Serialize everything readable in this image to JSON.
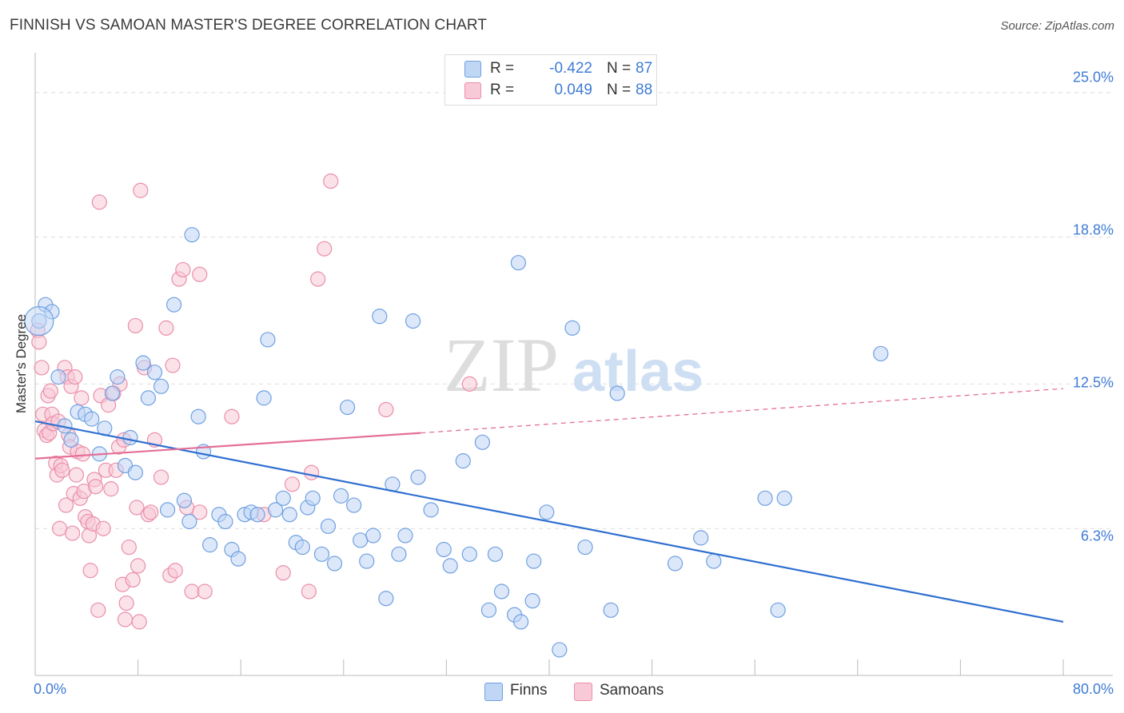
{
  "title": "FINNISH VS SAMOAN MASTER'S DEGREE CORRELATION CHART",
  "source": "Source: ZipAtlas.com",
  "watermark": {
    "zip": "ZIP",
    "atlas": "atlas"
  },
  "colors": {
    "finns_fill": "#c0d6f5",
    "finns_stroke": "#6fa0e0",
    "finns_line": "#2f6fd1",
    "samoans_fill": "#f8c9d6",
    "samoans_stroke": "#ea8fab",
    "samoans_line": "#e46f97",
    "tick_text": "#3e7bd6",
    "grid": "#dddddd"
  },
  "legend": {
    "rows": [
      {
        "r_label": "R =",
        "r_value": "-0.422",
        "n_label": "N =",
        "n_value": "87"
      },
      {
        "r_label": "R =",
        "r_value": "0.049",
        "n_label": "N =",
        "n_value": "88"
      }
    ]
  },
  "bottom_legend": {
    "finns": "Finns",
    "samoans": "Samoans"
  },
  "chart_data": {
    "type": "scatter",
    "title": "FINNISH VS SAMOAN MASTER'S DEGREE CORRELATION CHART",
    "xlabel": "",
    "ylabel": "Master's Degree",
    "xlim": [
      0,
      80
    ],
    "ylim": [
      0,
      26.5
    ],
    "x_tick_labels": [
      "0.0%",
      "80.0%"
    ],
    "y_ticks": [
      6.3,
      12.5,
      18.8,
      25.0
    ],
    "y_tick_labels": [
      "6.3%",
      "12.5%",
      "18.8%",
      "25.0%"
    ],
    "grid": "horizontal dashed",
    "legend_position": "top-center",
    "series": [
      {
        "name": "Finns",
        "r": -0.422,
        "n": 87,
        "trend": {
          "x": [
            0,
            80
          ],
          "y": [
            10.9,
            2.3
          ]
        },
        "points": [
          [
            0.3,
            15.2
          ],
          [
            0.8,
            15.9
          ],
          [
            1.3,
            15.6
          ],
          [
            1.8,
            12.8
          ],
          [
            2.3,
            10.7
          ],
          [
            2.8,
            10.1
          ],
          [
            3.3,
            11.3
          ],
          [
            3.9,
            11.2
          ],
          [
            4.4,
            11.0
          ],
          [
            5.0,
            9.5
          ],
          [
            5.4,
            10.6
          ],
          [
            6.0,
            12.1
          ],
          [
            6.4,
            12.8
          ],
          [
            7.0,
            9.0
          ],
          [
            7.4,
            10.2
          ],
          [
            7.8,
            8.7
          ],
          [
            8.4,
            13.4
          ],
          [
            8.8,
            11.9
          ],
          [
            9.3,
            13.0
          ],
          [
            9.8,
            12.4
          ],
          [
            10.3,
            7.1
          ],
          [
            10.8,
            15.9
          ],
          [
            11.6,
            7.5
          ],
          [
            12.0,
            6.6
          ],
          [
            12.2,
            18.9
          ],
          [
            12.7,
            11.1
          ],
          [
            13.1,
            9.6
          ],
          [
            13.6,
            5.6
          ],
          [
            14.3,
            6.9
          ],
          [
            14.8,
            6.6
          ],
          [
            15.3,
            5.4
          ],
          [
            15.8,
            5.0
          ],
          [
            16.3,
            6.9
          ],
          [
            16.8,
            7.0
          ],
          [
            17.3,
            6.9
          ],
          [
            17.8,
            11.9
          ],
          [
            18.1,
            14.4
          ],
          [
            18.7,
            7.1
          ],
          [
            19.3,
            7.6
          ],
          [
            19.8,
            6.9
          ],
          [
            20.3,
            5.7
          ],
          [
            20.8,
            5.5
          ],
          [
            21.2,
            7.2
          ],
          [
            21.6,
            7.6
          ],
          [
            22.3,
            5.2
          ],
          [
            22.8,
            6.4
          ],
          [
            23.3,
            4.8
          ],
          [
            23.8,
            7.7
          ],
          [
            24.3,
            11.5
          ],
          [
            24.8,
            7.3
          ],
          [
            25.3,
            5.8
          ],
          [
            25.8,
            4.9
          ],
          [
            26.3,
            6.0
          ],
          [
            26.8,
            15.4
          ],
          [
            27.3,
            3.3
          ],
          [
            27.8,
            8.2
          ],
          [
            28.3,
            5.2
          ],
          [
            28.8,
            6.0
          ],
          [
            29.4,
            15.2
          ],
          [
            29.8,
            8.5
          ],
          [
            30.8,
            7.1
          ],
          [
            31.8,
            5.4
          ],
          [
            32.3,
            4.7
          ],
          [
            33.3,
            9.2
          ],
          [
            33.8,
            5.2
          ],
          [
            34.8,
            10.0
          ],
          [
            35.3,
            2.8
          ],
          [
            35.8,
            5.2
          ],
          [
            36.3,
            3.6
          ],
          [
            37.3,
            2.6
          ],
          [
            37.6,
            17.7
          ],
          [
            37.8,
            2.3
          ],
          [
            38.7,
            3.2
          ],
          [
            38.8,
            4.9
          ],
          [
            39.8,
            7.0
          ],
          [
            40.8,
            1.1
          ],
          [
            41.8,
            14.9
          ],
          [
            42.8,
            5.5
          ],
          [
            44.8,
            2.8
          ],
          [
            45.3,
            12.1
          ],
          [
            49.8,
            4.8
          ],
          [
            51.8,
            5.9
          ],
          [
            52.8,
            4.9
          ],
          [
            56.8,
            7.6
          ],
          [
            57.8,
            2.8
          ],
          [
            58.3,
            7.6
          ],
          [
            65.8,
            13.8
          ]
        ]
      },
      {
        "name": "Samoans",
        "r": 0.049,
        "n": 88,
        "trend": {
          "x": [
            0,
            30
          ],
          "y": [
            9.3,
            10.4
          ],
          "dashed_extension": {
            "x": [
              30,
              80
            ],
            "y": [
              10.4,
              12.3
            ]
          }
        },
        "points": [
          [
            0.2,
            14.8
          ],
          [
            0.3,
            14.3
          ],
          [
            0.5,
            13.2
          ],
          [
            0.6,
            11.2
          ],
          [
            0.7,
            10.5
          ],
          [
            0.9,
            10.3
          ],
          [
            1.0,
            12.0
          ],
          [
            1.1,
            10.4
          ],
          [
            1.2,
            12.2
          ],
          [
            1.3,
            11.2
          ],
          [
            1.4,
            10.8
          ],
          [
            1.6,
            9.1
          ],
          [
            1.7,
            8.6
          ],
          [
            1.8,
            10.9
          ],
          [
            1.9,
            6.3
          ],
          [
            2.0,
            9.0
          ],
          [
            2.1,
            8.8
          ],
          [
            2.3,
            13.2
          ],
          [
            2.4,
            7.3
          ],
          [
            2.5,
            12.8
          ],
          [
            2.6,
            10.3
          ],
          [
            2.7,
            9.8
          ],
          [
            2.8,
            12.4
          ],
          [
            2.9,
            6.1
          ],
          [
            3.0,
            7.8
          ],
          [
            3.1,
            12.8
          ],
          [
            3.2,
            8.6
          ],
          [
            3.3,
            9.6
          ],
          [
            3.5,
            7.6
          ],
          [
            3.6,
            11.9
          ],
          [
            3.7,
            9.5
          ],
          [
            3.8,
            7.9
          ],
          [
            3.9,
            6.8
          ],
          [
            4.1,
            6.6
          ],
          [
            4.2,
            6.0
          ],
          [
            4.3,
            4.5
          ],
          [
            4.5,
            6.5
          ],
          [
            4.6,
            8.4
          ],
          [
            4.7,
            8.1
          ],
          [
            4.9,
            2.8
          ],
          [
            5.0,
            20.3
          ],
          [
            5.1,
            12.0
          ],
          [
            5.3,
            6.3
          ],
          [
            5.5,
            8.8
          ],
          [
            5.7,
            11.6
          ],
          [
            5.9,
            8.0
          ],
          [
            6.1,
            12.1
          ],
          [
            6.3,
            8.8
          ],
          [
            6.5,
            9.8
          ],
          [
            6.6,
            12.5
          ],
          [
            6.8,
            3.9
          ],
          [
            6.9,
            10.1
          ],
          [
            7.0,
            2.4
          ],
          [
            7.1,
            3.1
          ],
          [
            7.3,
            5.5
          ],
          [
            7.6,
            4.1
          ],
          [
            7.8,
            15.0
          ],
          [
            7.9,
            7.2
          ],
          [
            8.0,
            4.7
          ],
          [
            8.1,
            2.3
          ],
          [
            8.2,
            20.8
          ],
          [
            8.5,
            13.2
          ],
          [
            8.8,
            6.9
          ],
          [
            9.0,
            7.0
          ],
          [
            9.3,
            10.1
          ],
          [
            9.8,
            8.5
          ],
          [
            10.2,
            14.9
          ],
          [
            10.5,
            4.3
          ],
          [
            10.7,
            13.3
          ],
          [
            10.9,
            4.5
          ],
          [
            11.2,
            17.0
          ],
          [
            11.5,
            17.4
          ],
          [
            11.8,
            7.2
          ],
          [
            12.2,
            3.6
          ],
          [
            12.8,
            7.0
          ],
          [
            12.8,
            17.2
          ],
          [
            13.2,
            3.6
          ],
          [
            15.3,
            11.1
          ],
          [
            17.8,
            6.9
          ],
          [
            19.3,
            4.4
          ],
          [
            20.0,
            8.2
          ],
          [
            21.3,
            3.6
          ],
          [
            21.5,
            8.7
          ],
          [
            22.0,
            17.0
          ],
          [
            22.5,
            18.3
          ],
          [
            23.0,
            21.2
          ],
          [
            27.3,
            11.4
          ],
          [
            33.8,
            12.5
          ]
        ]
      }
    ]
  }
}
